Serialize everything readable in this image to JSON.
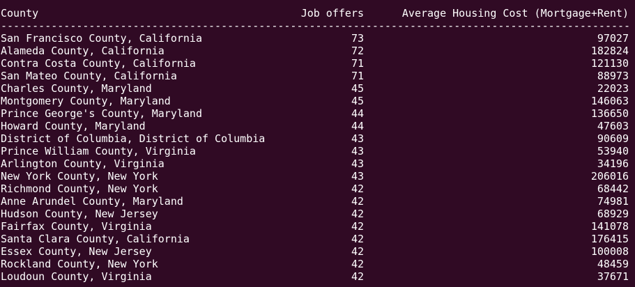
{
  "terminal": {
    "header": {
      "county": "County",
      "jobs": "Job offers",
      "cost": "Average Housing Cost (Mortgage+Rent)"
    },
    "separator": "----------------------------------------------------------------------------------------------------",
    "rows": [
      {
        "county": "San Francisco County, California",
        "jobs": "73",
        "cost": "97027"
      },
      {
        "county": "Alameda County, California",
        "jobs": "72",
        "cost": "182824"
      },
      {
        "county": "Contra Costa County, California",
        "jobs": "71",
        "cost": "121130"
      },
      {
        "county": "San Mateo County, California",
        "jobs": "71",
        "cost": "88973"
      },
      {
        "county": "Charles County, Maryland",
        "jobs": "45",
        "cost": "22023"
      },
      {
        "county": "Montgomery County, Maryland",
        "jobs": "45",
        "cost": "146063"
      },
      {
        "county": "Prince George's County, Maryland",
        "jobs": "44",
        "cost": "136650"
      },
      {
        "county": "Howard County, Maryland",
        "jobs": "44",
        "cost": "47603"
      },
      {
        "county": "District of Columbia, District of Columbia",
        "jobs": "43",
        "cost": "90609"
      },
      {
        "county": "Prince William County, Virginia",
        "jobs": "43",
        "cost": "53940"
      },
      {
        "county": "Arlington County, Virginia",
        "jobs": "43",
        "cost": "34196"
      },
      {
        "county": "New York County, New York",
        "jobs": "43",
        "cost": "206016"
      },
      {
        "county": "Richmond County, New York",
        "jobs": "42",
        "cost": "68442"
      },
      {
        "county": "Anne Arundel County, Maryland",
        "jobs": "42",
        "cost": "74981"
      },
      {
        "county": "Hudson County, New Jersey",
        "jobs": "42",
        "cost": "68929"
      },
      {
        "county": "Fairfax County, Virginia",
        "jobs": "42",
        "cost": "141078"
      },
      {
        "county": "Santa Clara County, California",
        "jobs": "42",
        "cost": "176415"
      },
      {
        "county": "Essex County, New Jersey",
        "jobs": "42",
        "cost": "100008"
      },
      {
        "county": "Rockland County, New York",
        "jobs": "42",
        "cost": "48459"
      },
      {
        "county": "Loudoun County, Virginia",
        "jobs": "42",
        "cost": "37671"
      }
    ]
  },
  "colors": {
    "background": "#300a24",
    "text": "#ffffff"
  }
}
